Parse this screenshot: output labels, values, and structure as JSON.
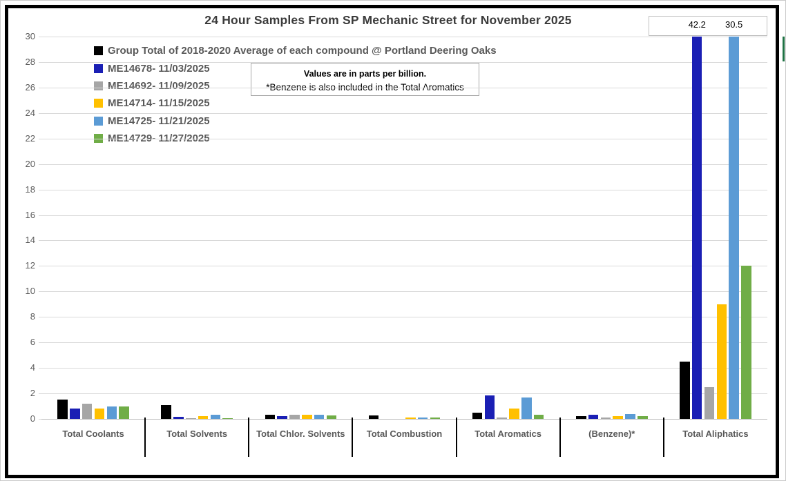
{
  "title": "24 Hour Samples From SP Mechanic Street for November 2025",
  "note_box": {
    "line1": "Values are in parts per billion.",
    "line2": "*Benzene is also included in the Total Aromatics"
  },
  "clipped_value_box": {
    "values": [
      "42.2",
      "30.5"
    ]
  },
  "colors": {
    "avg_black": "#000000",
    "sample1_blue": "#1a1fb4",
    "sample2_gray": "#a6a6a6",
    "sample3_yellow": "#ffc000",
    "sample4_lightblue": "#5b9bd5",
    "sample5_green": "#70ad47",
    "gridline": "#d9d9d9",
    "axis": "#bfbfbf",
    "text_gray": "#595959",
    "title_gray": "#3b3b3b",
    "excel_selection_green": "#1f7244"
  },
  "chart_data": {
    "type": "bar",
    "title": "24 Hour Samples From SP Mechanic Street for November 2025",
    "categories": [
      "Total Coolants",
      "Total Solvents",
      "Total Chlor. Solvents",
      "Total Combustion",
      "Total Aromatics",
      "(Benzene)*",
      "Total Aliphatics"
    ],
    "series": [
      {
        "name": "Group Total of 2018-2020 Average of each compound @ Portland Deering Oaks",
        "color": "#000000",
        "values": [
          1.5,
          1.1,
          0.35,
          0.25,
          0.5,
          0.2,
          4.5
        ]
      },
      {
        "name": "ME14678- 11/03/2025",
        "color": "#1a1fb4",
        "values": [
          0.8,
          0.15,
          0.2,
          0,
          1.85,
          0.3,
          42.2
        ]
      },
      {
        "name": "ME14692- 11/09/2025",
        "color": "#a6a6a6",
        "values": [
          1.2,
          0.05,
          0.35,
          0,
          0.1,
          0.1,
          2.5
        ]
      },
      {
        "name": "ME14714- 11/15/2025",
        "color": "#ffc000",
        "values": [
          0.8,
          0.2,
          0.3,
          0.1,
          0.8,
          0.2,
          9
        ]
      },
      {
        "name": "ME14725- 11/21/2025",
        "color": "#5b9bd5",
        "values": [
          0.95,
          0.3,
          0.3,
          0.1,
          1.7,
          0.4,
          30.5
        ]
      },
      {
        "name": "ME14729- 11/27/2025",
        "color": "#70ad47",
        "values": [
          0.95,
          0.05,
          0.25,
          0.1,
          0.35,
          0.2,
          12
        ]
      }
    ],
    "ylim": [
      0,
      30
    ],
    "yticks": [
      0,
      2,
      4,
      6,
      8,
      10,
      12,
      14,
      16,
      18,
      20,
      22,
      24,
      26,
      28,
      30
    ],
    "grid": true,
    "legend_position": "top-left",
    "units_note": "Values are in parts per billion.",
    "annotations": [
      {
        "text": "42.2",
        "category_index": 6,
        "series_index": 1
      },
      {
        "text": "30.5",
        "category_index": 6,
        "series_index": 4
      }
    ]
  }
}
